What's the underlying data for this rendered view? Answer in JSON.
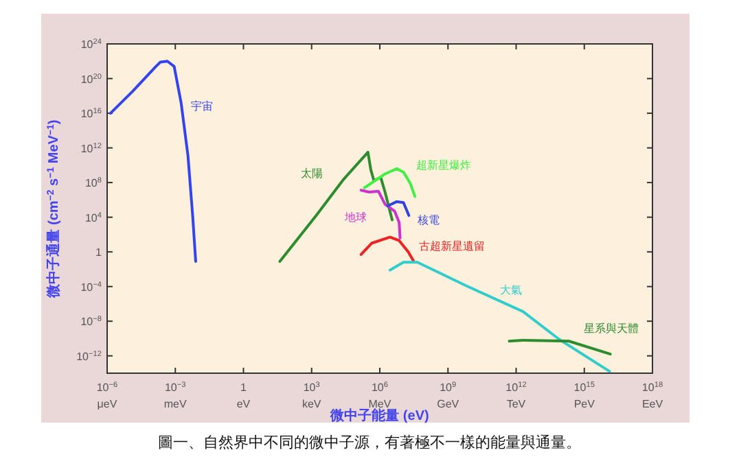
{
  "chart_data": {
    "type": "line",
    "xlabel": "微中子能量 (eV)",
    "ylabel": "微中子通量 (cm$^{−2}$ s$^{−1}$ MeV$^{−1}$)",
    "log": "xy",
    "xlim": [
      1e-06,
      1e+18
    ],
    "ylim": [
      1e-14,
      1e+24
    ],
    "xticks": [
      {
        "value": 1e-06,
        "label": "10$^{−6}$"
      },
      {
        "value": 0.001,
        "label": "10$^{−3}$"
      },
      1,
      {
        "value": 1000.0,
        "label": "10$^{3}$"
      },
      {
        "value": 1000000.0,
        "label": "10$^{6}$"
      },
      {
        "value": 1000000000.0,
        "label": "10$^{9}$"
      },
      {
        "value": 1000000000000.0,
        "label": "10$^{12}$"
      },
      {
        "value": 1000000000000000.0,
        "label": "10$^{15}$"
      },
      {
        "value": 1e+18,
        "label": "10$^{18}$"
      }
    ],
    "yticks": [
      {
        "value": 1e-12,
        "label": "10$^{−12}$"
      },
      {
        "value": 1e-08,
        "label": "10$^{−8}$"
      },
      {
        "value": 0.0001,
        "label": "10$^{−4}$"
      },
      1,
      {
        "value": 10000.0,
        "label": "10$^{4}$"
      },
      {
        "value": 100000000.0,
        "label": "10$^{8}$"
      },
      {
        "value": 1000000000000.0,
        "label": "10$^{12}$"
      },
      {
        "value": 1e+16,
        "label": "10$^{16}$"
      },
      {
        "value": 1e+20,
        "label": "10$^{20}$"
      },
      {
        "value": 1e+24,
        "label": "10$^{24}$"
      }
    ],
    "series": [
      {
        "name": "宇宙",
        "color": "#3344ee",
        "x": [
          1.4e-06,
          1.3e-05,
          0.00014,
          0.00022,
          0.00045,
          0.00089,
          0.0018,
          0.0036,
          0.0058,
          0.0079
        ],
        "values": [
          1e+16,
          3.2e+18,
          2.5e+21,
          7.9e+21,
          1e+22,
          2.5e+21,
          1.6e+17,
          130000000000.0,
          16000.0,
          0.079
        ]
      },
      {
        "name": "太陽",
        "color": "#2e8b2e",
        "x": [
          40,
          1600,
          26000.0,
          300000.0,
          400000.0,
          550000.0,
          1100000.0,
          1700000.0,
          3500000.0
        ],
        "values": [
          0.079,
          16000.0,
          250000000.0,
          320000000000.0,
          3200000000.0,
          160000000.0,
          400000000.0,
          7900000.0,
          5000.0
        ]
      },
      {
        "name": "超新星爆炸",
        "color": "#44ee44",
        "x": [
          210000.0,
          1700000.0,
          5600000.0,
          11000000.0,
          22000000.0,
          35000000.0
        ],
        "values": [
          25000000.0,
          1000000000.0,
          4000000000.0,
          1600000000.0,
          79000000.0,
          2500000.0
        ]
      },
      {
        "name": "地球",
        "color": "#cc33cc",
        "x": [
          150000.0,
          340000.0,
          870000.0,
          1700000.0,
          4500000.0,
          7100000.0,
          7800000.0
        ],
        "values": [
          13000000.0,
          7900000.0,
          10000000.0,
          320000.0,
          50000.0,
          2500.0,
          40
        ]
      },
      {
        "name": "核電",
        "color": "#3344dd",
        "x": [
          2200000.0,
          5600000.0,
          11000000.0,
          19000000.0
        ],
        "values": [
          200000.0,
          630000.0,
          500000.0,
          16000.0
        ]
      },
      {
        "name": "古超新星遺留",
        "color": "#ee2222",
        "x": [
          150000.0,
          440000.0,
          2800000.0,
          7100000.0,
          18000000.0,
          31000000.0
        ],
        "values": [
          0.5,
          10,
          50,
          20,
          1,
          0.079
        ]
      },
      {
        "name": "大氣",
        "color": "#33cccc",
        "x": [
          2800000.0,
          11000000.0,
          45000000.0,
          7600000000.0,
          2000000000000.0,
          79000000000000.0,
          1.3e+16
        ],
        "values": [
          0.0079,
          0.063,
          0.063,
          0.0001,
          1.3e-07,
          7.9e-11,
          1.6e-14
        ]
      },
      {
        "name": "星系與天體",
        "color": "#2e8b2e",
        "x": [
          500000000000.0,
          2000000000000.0,
          210000000000000.0,
          1.4e+16
        ],
        "values": [
          5e-11,
          6.3e-11,
          5e-11,
          1.6e-12
        ]
      }
    ],
    "annotations": [
      "圖一、自然界中不同的微中子源，有著極不一樣的能量與通量。",
      "μeV",
      "meV",
      "eV",
      "keV",
      "MeV",
      "GeV",
      "TeV",
      "PeV",
      "EeV"
    ]
  }
}
